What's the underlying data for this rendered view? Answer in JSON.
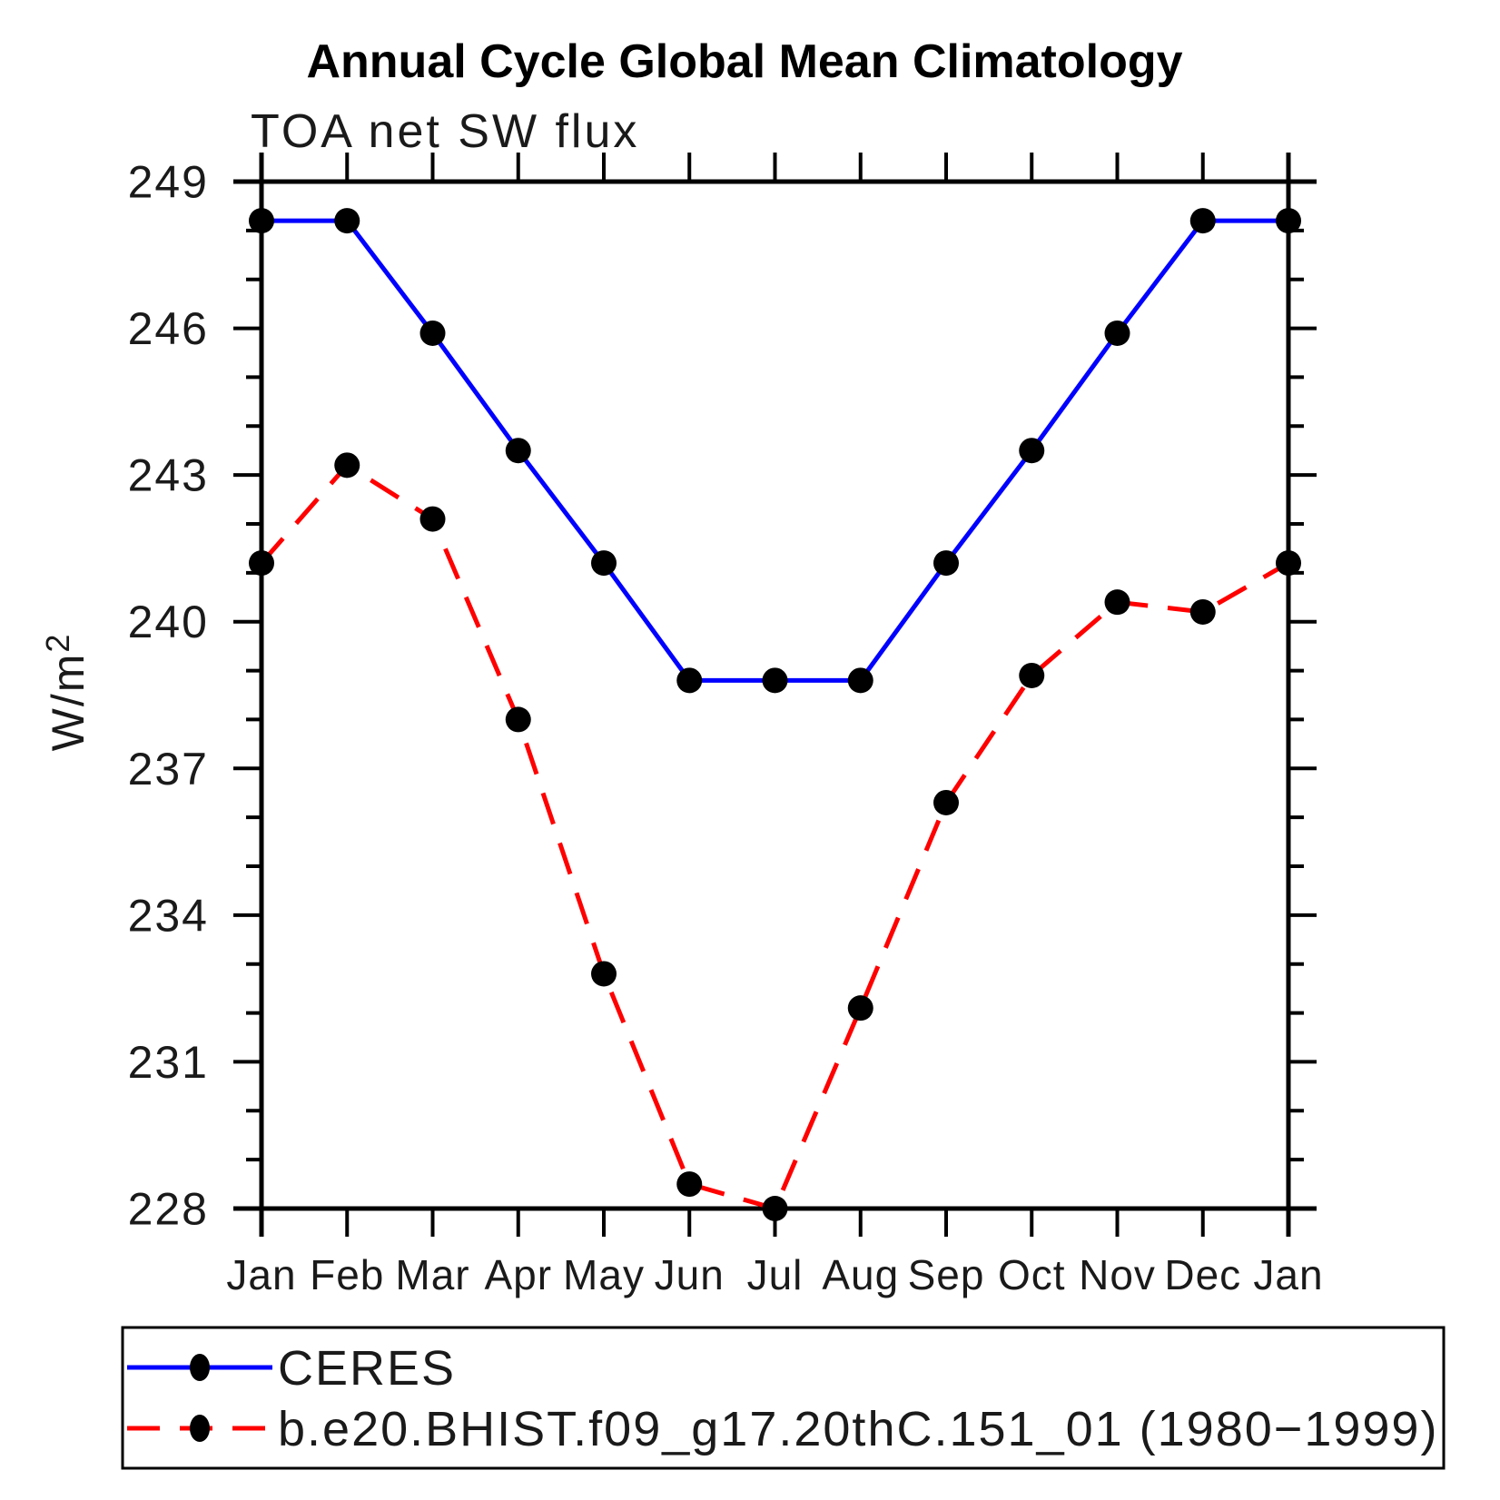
{
  "title": "Annual Cycle Global Mean Climatology",
  "subtitle": "TOA net SW flux",
  "ylabel": {
    "base": "W/m",
    "exponent": "2"
  },
  "legend": {
    "position": "bottom",
    "entries": [
      {
        "label": "CERES",
        "line_color": "#0000ff",
        "line_style": "solid",
        "marker": "black-dot"
      },
      {
        "label": "b.e20.BHIST.f09_g17.20thC.151_01 (1980−1999)",
        "line_color": "#ff0000",
        "line_style": "dashed",
        "marker": "black-dot"
      }
    ]
  },
  "chart_data": {
    "type": "line",
    "categories": [
      "Jan",
      "Feb",
      "Mar",
      "Apr",
      "May",
      "Jun",
      "Jul",
      "Aug",
      "Sep",
      "Oct",
      "Nov",
      "Dec",
      "Jan"
    ],
    "series": [
      {
        "name": "CERES",
        "color": "#0000ff",
        "style": "solid",
        "marker_color": "#000000",
        "values": [
          248.2,
          248.2,
          245.9,
          243.5,
          241.2,
          238.8,
          238.8,
          238.8,
          241.2,
          243.5,
          245.9,
          248.2,
          248.2
        ]
      },
      {
        "name": "b.e20.BHIST.f09_g17.20thC.151_01 (1980−1999)",
        "color": "#ff0000",
        "style": "dashed",
        "marker_color": "#000000",
        "values": [
          241.2,
          243.2,
          242.1,
          238.0,
          232.8,
          228.5,
          228.0,
          232.1,
          236.3,
          238.9,
          240.4,
          240.2,
          241.2
        ]
      }
    ],
    "ylim": [
      228,
      249
    ],
    "ytick_major": 3,
    "ytick_minor": 1,
    "xlabel": "",
    "ylabel": "W/m2",
    "grid": false,
    "legend_position": "bottom"
  }
}
